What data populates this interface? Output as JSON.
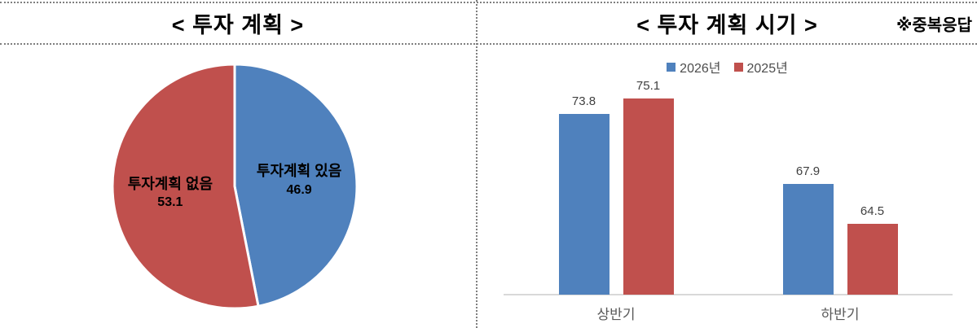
{
  "panels": {
    "left": {
      "title": "<  투자  계획  >"
    },
    "right": {
      "title": "<  투자  계획  시기  >",
      "note": "※중복응답"
    }
  },
  "chart_data": [
    {
      "type": "pie",
      "title": "<  투자  계획  >",
      "slices": [
        {
          "label": "투자계획 있음",
          "value": 46.9,
          "color": "#4F81BD"
        },
        {
          "label": "투자계획 없음",
          "value": 53.1,
          "color": "#C0504D"
        }
      ],
      "start_angle_deg": 0,
      "direction": "clockwise",
      "slice_border_color": "#FFFFFF",
      "labels_inside": true
    },
    {
      "type": "bar",
      "title": "<  투자  계획  시기  >",
      "note": "※중복응답",
      "categories": [
        "상반기",
        "하반기"
      ],
      "series": [
        {
          "name": "2026년",
          "color": "#4F81BD",
          "values": [
            73.8,
            67.9
          ]
        },
        {
          "name": "2025년",
          "color": "#C0504D",
          "values": [
            75.1,
            64.5
          ]
        }
      ],
      "ylim": [
        58.5,
        79.2
      ],
      "grid": false,
      "legend_position": "top",
      "value_labels": true,
      "axis_color": "#d9d9d9"
    }
  ]
}
